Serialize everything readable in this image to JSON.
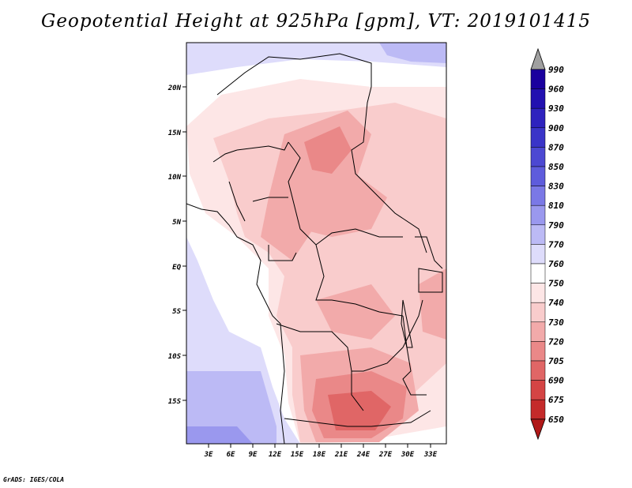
{
  "title": "Geopotential Height at 925hPa [gpm], VT: 2019101415",
  "footer": "GrADS: IGES/COLA",
  "map": {
    "lat_labels": [
      "20N",
      "15N",
      "10N",
      "5N",
      "EQ",
      "5S",
      "10S",
      "15S"
    ],
    "lon_labels": [
      "3E",
      "6E",
      "9E",
      "12E",
      "15E",
      "18E",
      "21E",
      "24E",
      "27E",
      "30E",
      "33E"
    ]
  },
  "colorbar": {
    "levels": [
      "990",
      "960",
      "930",
      "900",
      "870",
      "850",
      "830",
      "810",
      "790",
      "770",
      "760",
      "750",
      "740",
      "730",
      "720",
      "705",
      "690",
      "675",
      "650"
    ],
    "colors": {
      "top_arrow": "#a0a0a0",
      "c990": "#1a009e",
      "c960": "#2210b0",
      "c930": "#2e22be",
      "c900": "#3a34c8",
      "c870": "#4c48d2",
      "c850": "#5e5cdc",
      "c830": "#7a78e6",
      "c810": "#9a98ee",
      "c790": "#bcbaf5",
      "c770": "#dedcfb",
      "c760": "#ffffff",
      "c750": "#fde6e6",
      "c740": "#f9cccc",
      "c730": "#f2aaaa",
      "c720": "#ea8888",
      "c705": "#e06666",
      "c690": "#d44444",
      "c675": "#c42a2a",
      "c650": "#b01818"
    }
  }
}
